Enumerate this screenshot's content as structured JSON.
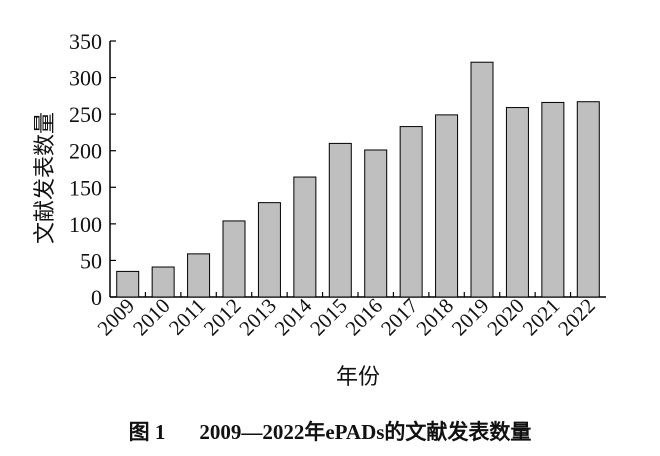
{
  "chart_data": {
    "type": "bar",
    "categories": [
      "2009",
      "2010",
      "2011",
      "2012",
      "2013",
      "2014",
      "2015",
      "2016",
      "2017",
      "2018",
      "2019",
      "2020",
      "2021",
      "2022"
    ],
    "values": [
      35,
      41,
      59,
      104,
      129,
      164,
      210,
      201,
      233,
      249,
      321,
      259,
      266,
      267
    ],
    "xlabel": "年份",
    "ylabel": "文献发表数量",
    "ylim": [
      0,
      350
    ],
    "yticks": [
      0,
      50,
      100,
      150,
      200,
      250,
      300,
      350
    ],
    "grid": false,
    "bar_color": "#bfbfbf",
    "bar_edge_color": "#000000"
  },
  "caption": {
    "figure_label": "图 1",
    "text": "2009—2022年ePADs的文献发表数量"
  }
}
